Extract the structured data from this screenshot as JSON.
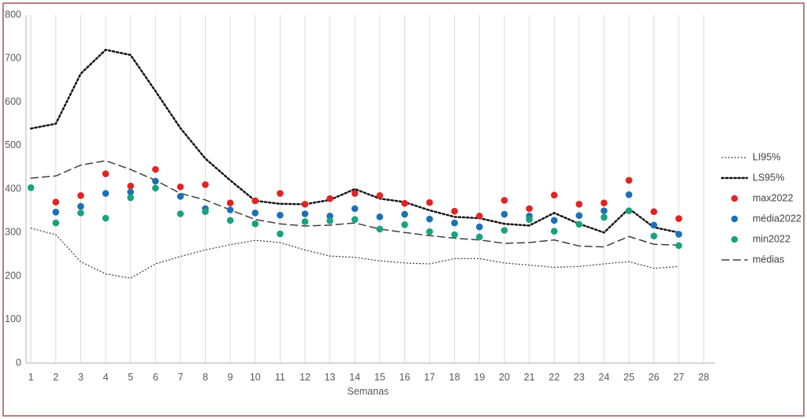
{
  "chart_data": {
    "type": "scatter",
    "title": "",
    "xlabel": "Semanas",
    "ylabel": "",
    "xlim": [
      1,
      28
    ],
    "ylim": [
      0,
      800
    ],
    "x_ticks": [
      1,
      2,
      3,
      4,
      5,
      6,
      7,
      8,
      9,
      10,
      11,
      12,
      13,
      14,
      15,
      16,
      17,
      18,
      19,
      20,
      21,
      22,
      23,
      24,
      25,
      26,
      27,
      28
    ],
    "y_ticks": [
      0,
      100,
      200,
      300,
      400,
      500,
      600,
      700,
      800
    ],
    "grid": "vertical-only",
    "legend_position": "right",
    "legend": [
      "LI95%",
      "LS95%",
      "max2022",
      "média2022",
      "min2022",
      "médias"
    ],
    "weeks": [
      1,
      2,
      3,
      4,
      5,
      6,
      7,
      8,
      9,
      10,
      11,
      12,
      13,
      14,
      15,
      16,
      17,
      18,
      19,
      20,
      21,
      22,
      23,
      24,
      25,
      26,
      27
    ],
    "series": [
      {
        "name": "LI95%",
        "style": "dotted-thin",
        "color": "#3f3f3f",
        "values": [
          310,
          295,
          233,
          205,
          195,
          228,
          245,
          260,
          272,
          282,
          277,
          260,
          246,
          243,
          235,
          230,
          228,
          240,
          240,
          230,
          225,
          220,
          222,
          228,
          233,
          218,
          222
        ]
      },
      {
        "name": "LS95%",
        "style": "dotted-bold",
        "color": "#141414",
        "values": [
          539,
          550,
          665,
          720,
          708,
          625,
          540,
          470,
          420,
          373,
          366,
          365,
          375,
          400,
          378,
          370,
          351,
          336,
          333,
          320,
          316,
          345,
          320,
          300,
          355,
          312,
          300
        ]
      },
      {
        "name": "max2022",
        "style": "dot",
        "color": "#e02424",
        "values": [
          null,
          370,
          385,
          435,
          407,
          445,
          405,
          410,
          368,
          373,
          390,
          365,
          378,
          390,
          385,
          367,
          369,
          349,
          338,
          374,
          355,
          386,
          365,
          368,
          420,
          348,
          332
        ]
      },
      {
        "name": "média2022",
        "style": "dot",
        "color": "#1d70b7",
        "values": [
          null,
          347,
          360,
          390,
          393,
          418,
          383,
          355,
          352,
          345,
          340,
          343,
          338,
          355,
          336,
          342,
          331,
          322,
          313,
          342,
          338,
          328,
          339,
          350,
          387,
          317,
          296
        ]
      },
      {
        "name": "min2022",
        "style": "dot",
        "color": "#18a27e",
        "values": [
          403,
          322,
          345,
          333,
          380,
          402,
          343,
          348,
          328,
          320,
          297,
          325,
          327,
          330,
          308,
          318,
          302,
          295,
          290,
          305,
          330,
          303,
          319,
          335,
          350,
          292,
          270
        ]
      },
      {
        "name": "médias",
        "style": "dashed",
        "color": "#3f3f3f",
        "values": [
          425,
          430,
          455,
          465,
          445,
          420,
          390,
          375,
          352,
          330,
          320,
          315,
          317,
          322,
          308,
          300,
          293,
          287,
          283,
          275,
          277,
          283,
          269,
          267,
          291,
          273,
          271
        ]
      }
    ]
  },
  "colors": {
    "frame_border": "#bb7e7e",
    "grid": "#dcdcdc",
    "axis": "#c0c0c0",
    "tick_text": "#595959",
    "legend_text": "#404040"
  }
}
